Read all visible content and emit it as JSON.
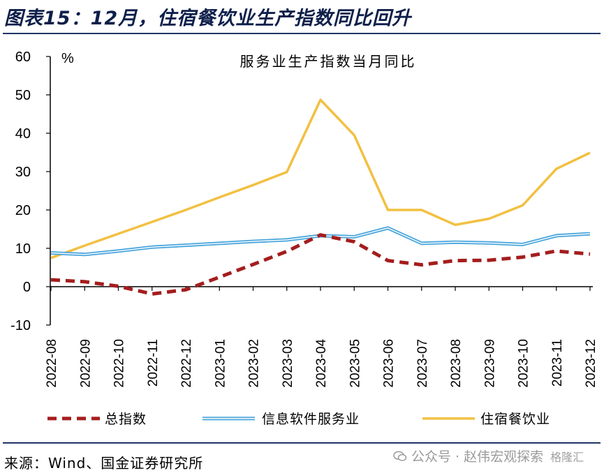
{
  "figure_title": "图表15：12月，住宿餐饮业生产指数同比回升",
  "source": "来源：Wind、国金证券研究所",
  "watermark": {
    "text": "公众号 · 赵伟宏观探索",
    "icon": "wechat-icon",
    "logo_text": "格隆汇"
  },
  "colors": {
    "title": "#0d1f4a",
    "rule": "#1f3566",
    "total": "#a51d1d",
    "info": "#4aa6dc",
    "hotel": "#f2c042"
  },
  "chart_data": {
    "type": "line",
    "title": "服务业生产指数当月同比",
    "unit": "%",
    "ylim": [
      -10,
      60
    ],
    "yticks": [
      -10,
      0,
      10,
      20,
      30,
      40,
      50,
      60
    ],
    "grid": false,
    "legend_position": "bottom",
    "x": [
      "2022-08",
      "2022-09",
      "2022-10",
      "2022-11",
      "2022-12",
      "2023-01",
      "2023-02",
      "2023-03",
      "2023-04",
      "2023-05",
      "2023-06",
      "2023-07",
      "2023-08",
      "2023-09",
      "2023-10",
      "2023-11",
      "2023-12"
    ],
    "series": [
      {
        "name": "总指数",
        "style": "dashed",
        "values": [
          1.8,
          1.3,
          0.1,
          -1.9,
          -0.8,
          2.5,
          5.8,
          9.2,
          13.5,
          11.7,
          6.8,
          5.7,
          6.8,
          6.9,
          7.7,
          9.3,
          8.5
        ]
      },
      {
        "name": "信息软件服务业",
        "style": "double",
        "values": [
          8.8,
          8.4,
          9.3,
          10.3,
          10.8,
          11.3,
          11.8,
          12.2,
          13.3,
          13.0,
          15.3,
          11.3,
          11.6,
          11.4,
          11.0,
          13.3,
          13.8
        ]
      },
      {
        "name": "住宿餐饮业",
        "style": "solid",
        "values": [
          7.5,
          10.7,
          13.8,
          16.9,
          20.0,
          23.3,
          26.5,
          29.9,
          48.7,
          39.5,
          20.0,
          20.0,
          16.1,
          17.7,
          21.2,
          30.7,
          34.9
        ]
      }
    ]
  }
}
